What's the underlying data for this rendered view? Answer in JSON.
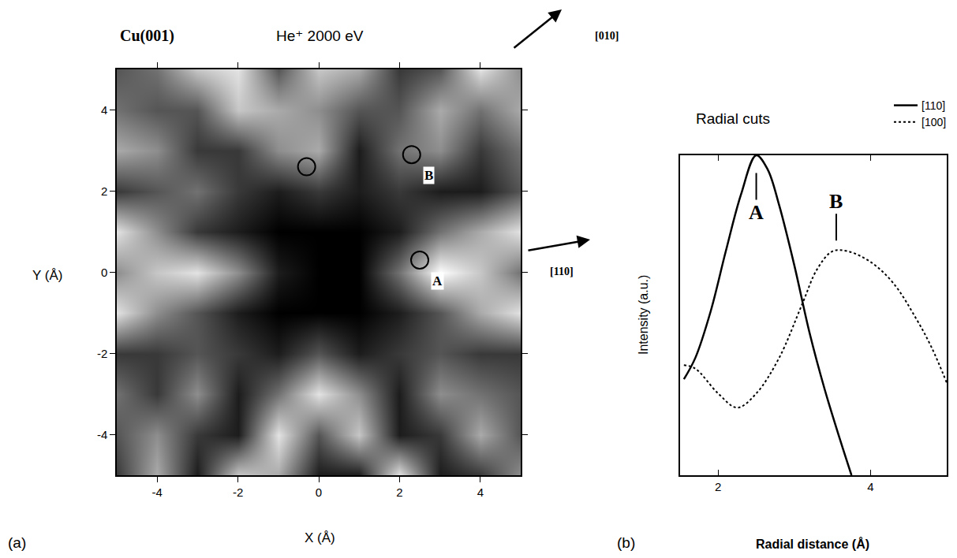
{
  "chart_data": [
    {
      "type": "heatmap",
      "panel": "(a)",
      "label": "Cu(001)",
      "title": "He⁺ 2000 eV",
      "x_label": "X (Å)",
      "y_label": "Y (Å)",
      "x": [
        -5,
        -4,
        -3,
        -2,
        -1,
        0,
        1,
        2,
        3,
        4,
        5
      ],
      "y": [
        -5,
        -4,
        -3,
        -2,
        -1,
        0,
        1,
        2,
        3,
        4,
        5
      ],
      "z": [
        [
          0.2,
          0.6,
          0.1,
          0.7,
          0.6,
          0.1,
          0.1,
          0.8,
          0.1,
          0.2,
          0.5
        ],
        [
          0.3,
          0.5,
          0.2,
          0.1,
          0.8,
          0.3,
          0.7,
          0.1,
          0.2,
          0.6,
          0.3
        ],
        [
          0.4,
          0.2,
          0.5,
          0.1,
          0.4,
          0.8,
          0.5,
          0.1,
          0.5,
          0.4,
          0.3
        ],
        [
          0.2,
          0.2,
          0.3,
          0.2,
          0.1,
          0.3,
          0.1,
          0.2,
          0.3,
          0.2,
          0.2
        ],
        [
          0.8,
          0.5,
          0.3,
          0.1,
          0,
          0,
          0,
          0.1,
          0.3,
          0.6,
          0.8
        ],
        [
          0.5,
          0.7,
          0.8,
          0.5,
          0.1,
          0,
          0,
          0.4,
          0.9,
          0.7,
          0.4
        ],
        [
          0.8,
          0.5,
          0.2,
          0.1,
          0,
          0,
          0,
          0.1,
          0.4,
          0.6,
          0.8
        ],
        [
          0.2,
          0.3,
          0.4,
          0.2,
          0.1,
          0.2,
          0.1,
          0.2,
          0.1,
          0.1,
          0.3
        ],
        [
          0.6,
          0.5,
          0.2,
          0.2,
          0.5,
          0.6,
          0.1,
          0.4,
          0.5,
          0.2,
          0.4
        ],
        [
          0.4,
          0.3,
          0.3,
          0.7,
          0.6,
          0.5,
          0.3,
          0.3,
          0.6,
          0.4,
          0.6
        ],
        [
          0.3,
          0.4,
          0.7,
          0.8,
          0.3,
          0.7,
          0.6,
          0.2,
          0.3,
          0.8,
          0.5
        ]
      ],
      "xlim": [
        -5,
        5
      ],
      "ylim": [
        -5,
        5
      ],
      "xticks": [
        -4,
        -2,
        0,
        2,
        4
      ],
      "yticks": [
        -4,
        -2,
        0,
        2,
        4
      ],
      "points": {
        "x": [
          -0.3,
          2.3,
          2.5
        ],
        "y": [
          2.6,
          2.9,
          0.3
        ],
        "labels": [
          null,
          "B",
          "A"
        ]
      },
      "annotations": [
        "[010]",
        "[110]"
      ]
    },
    {
      "type": "line",
      "panel": "(b)",
      "title": "Radial cuts",
      "x_label": "Radial distance (Å)",
      "y_label": "Intensity (a.u.)",
      "xlim": [
        1.5,
        5
      ],
      "ylim": [
        0,
        9
      ],
      "xticks": [
        2,
        4
      ],
      "tick_labels": "x",
      "legend": "top right",
      "series": [
        {
          "name": "[110]",
          "color": "#000000",
          "line_style": "solid",
          "x": [
            1.55,
            1.7,
            1.9,
            2.1,
            2.3,
            2.5,
            2.65,
            2.8,
            3.0,
            3.2,
            3.4,
            3.6,
            3.75
          ],
          "values": [
            2.7,
            3.3,
            4.6,
            6.3,
            7.9,
            9.0,
            8.6,
            7.6,
            5.9,
            4.0,
            2.4,
            1.0,
            0
          ]
        },
        {
          "name": "[100]",
          "color": "#000000",
          "line_style": "dot",
          "x": [
            1.55,
            1.7,
            2.0,
            2.25,
            2.5,
            2.8,
            3.1,
            3.3,
            3.5,
            3.7,
            4.0,
            4.3,
            4.6,
            4.8,
            5.0
          ],
          "values": [
            3.1,
            3.0,
            2.3,
            1.9,
            2.3,
            3.3,
            4.8,
            5.8,
            6.3,
            6.3,
            6.0,
            5.4,
            4.4,
            3.6,
            2.6
          ]
        }
      ],
      "annotations": [
        {
          "text": "A",
          "x": 2.5,
          "y": 8.5
        },
        {
          "text": "B",
          "x": 3.55,
          "y": 6.6
        }
      ]
    }
  ]
}
